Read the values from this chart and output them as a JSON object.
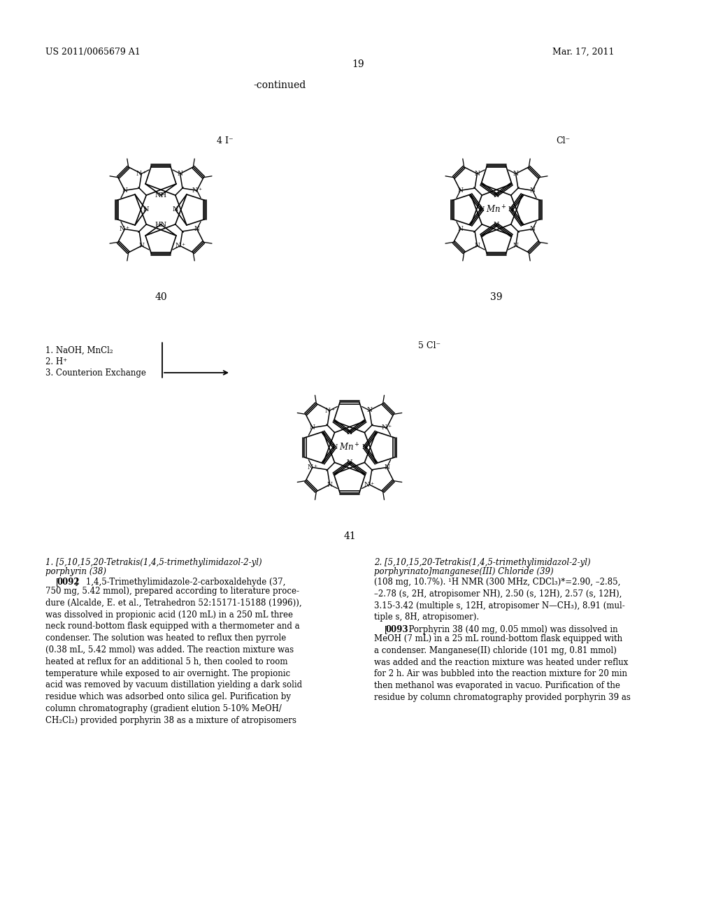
{
  "page_number": "19",
  "patent_number": "US 2011/0065679 A1",
  "patent_date": "Mar. 17, 2011",
  "continued_label": "-continued",
  "background_color": "#ffffff",
  "text_color": "#000000",
  "compound_40_label": "40",
  "compound_39_label": "39",
  "compound_41_label": "41",
  "charge_label_40": "4 I⁻",
  "charge_label_39": "Cl⁻",
  "charge_label_41": "5 Cl⁻",
  "reaction_cond_1": "1. NaOH, MnCl",
  "reaction_cond_2": "2. H",
  "reaction_cond_3": "3. Counterion Exchange",
  "col1_title_line1": "1. [5,10,15,20-Tetrakis(1,4,5-trimethylimidazol-2-yl)",
  "col1_title_line2": "porphyrin (38)",
  "col1_para": "    [0092]   1,4,5-Trimethylimidazole-2-carboxaldehyde (37,\n750 mg, 5.42 mmol), prepared according to literature proce-\ndure (Alcalde, E. et al., Tetrahedron 52:15171-15188 (1996)),\nwas dissolved in propionic acid (120 mL) in a 250 mL three\nneck round-bottom flask equipped with a thermometer and a\ncondenser. The solution was heated to reflux then pyrrole\n(0.38 mL, 5.42 mmol) was added. The reaction mixture was\nheated at reflux for an additional 5 h, then cooled to room\ntemperature while exposed to air overnight. The propionic\nacid was removed by vacuum distillation yielding a dark solid\nresidue which was adsorbed onto silica gel. Purification by\ncolumn chromatography (gradient elution 5-10% MeOH/\nCH₂Cl₂) provided porphyrin 38 as a mixture of atropisomers",
  "col2_title_line1": "2. [5,10,15,20-Tetrakis(1,4,5-trimethylimidazol-2-yl)",
  "col2_title_line2": "porphyrinato]manganese(III) Chloride (39)",
  "col2_nmr": "(108 mg, 10.7%). ¹H NMR (300 MHz, CDCl₃)*=2.90, –2.85,\n–2.78 (s, 2H, atropisomer NH), 2.50 (s, 12H), 2.57 (s, 12H),\n3.15-3.42 (multiple s, 12H, atropisomer N—CH₃), 8.91 (mul-\ntiple s, 8H, atropisomer).",
  "col2_para": "    [0093]  Porphyrin 38 (40 mg, 0.05 mmol) was dissolved in\nMeOH (7 mL) in a 25 mL round-bottom flask equipped with\na condenser. Manganese(II) chloride (101 mg, 0.81 mmol)\nwas added and the reaction mixture was heated under reflux\nfor 2 h. Air was bubbled into the reaction mixture for 20 min\nthen methanol was evaporated in vacuo. Purification of the\nresidue by column chromatography provided porphyrin 39 as"
}
